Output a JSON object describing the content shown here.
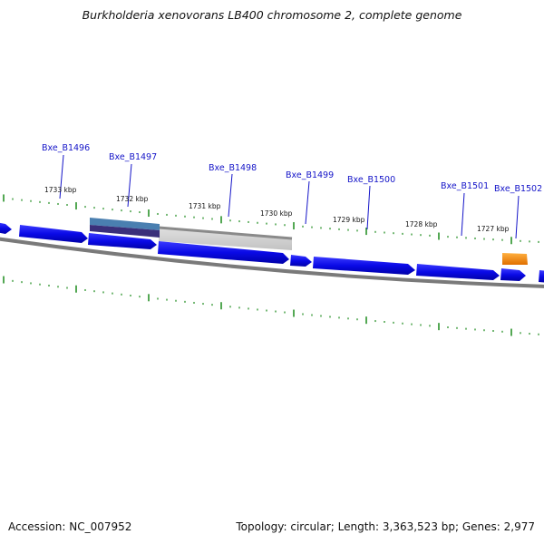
{
  "title": "Burkholderia xenovorans LB400 chromosome 2, complete genome",
  "footer": {
    "accession": "Accession: NC_007952",
    "summary": "Topology: circular; Length: 3,363,523 bp; Genes: 2,977"
  },
  "gene_labels": [
    "Bxe_B1496",
    "Bxe_B1497",
    "Bxe_B1498",
    "Bxe_B1499",
    "Bxe_B1500",
    "Bxe_B1501",
    "Bxe_B1502"
  ],
  "kbp_labels": [
    "1733 kbp",
    "1732 kbp",
    "1731 kbp",
    "1730 kbp",
    "1729 kbp",
    "1728 kbp",
    "1727 kbp"
  ],
  "colors": {
    "gene_fill": "#0a0ae6",
    "backbone": "#7a7a7a",
    "tick": "#1a8a1a",
    "highlight_gene": "#ff8c00",
    "label_text": "#1414c8"
  }
}
